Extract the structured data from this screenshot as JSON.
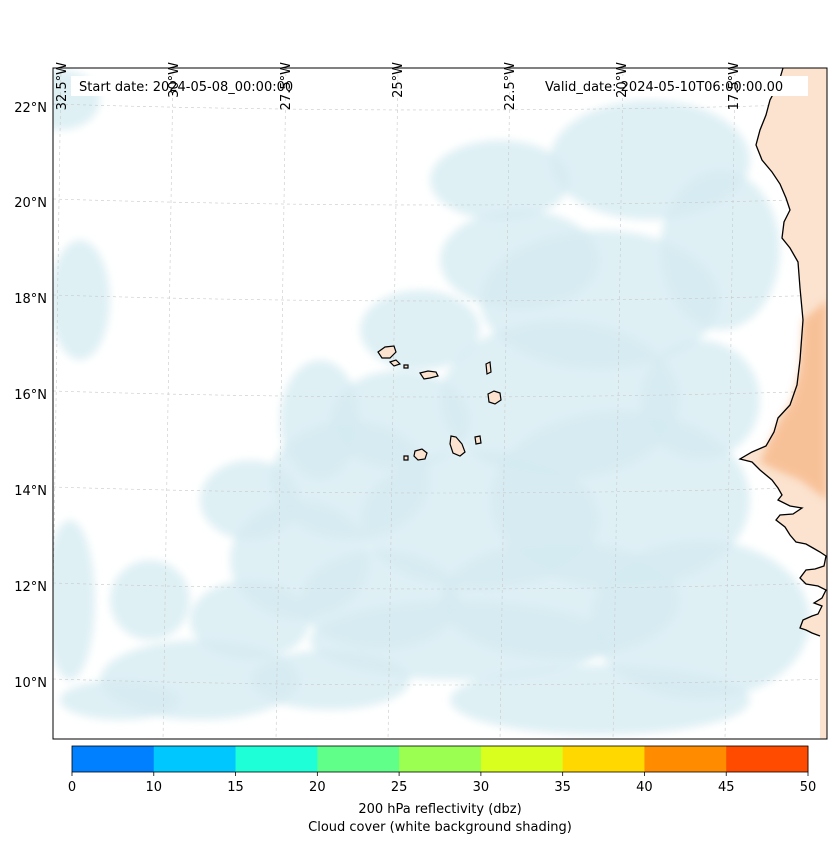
{
  "map": {
    "start_date": "Start date: 2024-05-08_00:00:00",
    "valid_date": "Valid_date: 2024-05-10T06:00:00.00",
    "lon_labels": [
      "32.5°W",
      "30°W",
      "27.5°W",
      "25°W",
      "22.5°W",
      "20°W",
      "17.5°W"
    ],
    "lat_labels": [
      "22°N",
      "20°N",
      "18°N",
      "16°N",
      "14°N",
      "12°N",
      "10°N"
    ],
    "land_color": "#fbe3cf",
    "coast_color": "#000000",
    "cloud_color": "#d4ebf2",
    "warm_land_color": "#f5a66c"
  },
  "colorbar": {
    "ticks": [
      "0",
      "10",
      "15",
      "20",
      "25",
      "30",
      "35",
      "40",
      "45",
      "50"
    ],
    "colors": [
      "#0080ff",
      "#00c8ff",
      "#1effd8",
      "#5fff8a",
      "#9aff50",
      "#d8ff1e",
      "#ffd800",
      "#ff8c00",
      "#ff4b00"
    ],
    "label_line1": "200 hPa reflectivity (dbz)",
    "label_line2": "Cloud cover (white background shading)"
  }
}
